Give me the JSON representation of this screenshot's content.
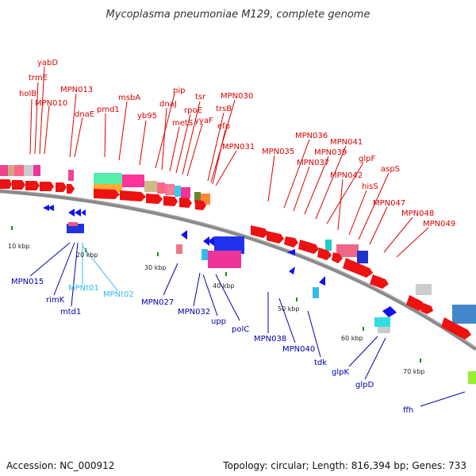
{
  "title": "Mycoplasma pneumoniae M129, complete genome",
  "footer": {
    "accession": "Accession: NC_000912",
    "stats": "Topology: circular; Length: 816,394 bp; Genes: 733"
  },
  "colors": {
    "forward_label": "#dd0000",
    "reverse_label": "#0000aa",
    "trna_label": "#33bbee",
    "backbone": "#777777",
    "tick": "#228822"
  },
  "kbp_labels": [
    "10 kbp",
    "20 kbp",
    "30 kbp",
    "40 kbp",
    "50 kbp",
    "60 kbp",
    "70 kbp"
  ],
  "forward_genes": [
    "yabD",
    "trmE",
    "holB",
    "MPN010",
    "MPN013",
    "dnaE",
    "pmd1",
    "msbA",
    "yb95",
    "pip",
    "dnaJ",
    "metS",
    "rpoE",
    "tsr",
    "yyaF",
    "trsB",
    "MPN030",
    "efp",
    "MPN031",
    "MPN035",
    "MPN036",
    "MPN037",
    "MPN039",
    "MPN041",
    "glpF",
    "MPN042",
    "hisS",
    "aspS",
    "MPN047",
    "MPN048",
    "MPN049"
  ],
  "reverse_genes": [
    "MPN015",
    "rimK",
    "mtd1",
    "MPNt01",
    "MPNt02",
    "MPN027",
    "MPN032",
    "upp",
    "polC",
    "MPN038",
    "MPN040",
    "tdk",
    "glpK",
    "glpD",
    "ffh"
  ]
}
